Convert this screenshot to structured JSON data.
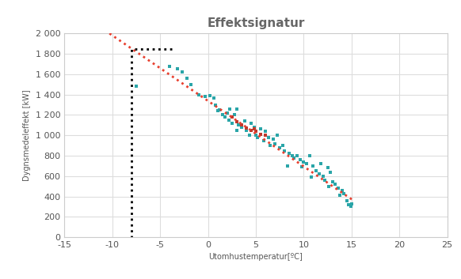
{
  "chart_data": {
    "type": "scatter",
    "title": "Effektsignatur",
    "x_label": "Utomhustemperatur[ºC]",
    "y_label": "Dygnsmedeleffekt [kW]",
    "xlim": [
      -15,
      25
    ],
    "xticks": [
      -15,
      -10,
      -5,
      0,
      5,
      10,
      15,
      20,
      25
    ],
    "ylim": [
      0,
      2000
    ],
    "yticks": [
      0,
      200,
      400,
      600,
      800,
      {
        "value": 1000,
        "label": "1 000"
      },
      {
        "value": 1200,
        "label": "1 200"
      },
      {
        "value": 1400,
        "label": "1 400"
      },
      {
        "value": 1600,
        "label": "1 600"
      },
      {
        "value": 1800,
        "label": "1 800"
      },
      {
        "value": 2000,
        "label": "2 000"
      }
    ],
    "grid": true,
    "series": [
      {
        "type": "scatter",
        "color": "#2aa5a8",
        "marker": "square",
        "x": [
          -7.5,
          -4,
          -3.2,
          -2.7,
          -2.2,
          -1.8,
          -1,
          -0.3,
          0.2,
          0.6,
          0.8,
          1.2,
          1.5,
          1.8,
          2,
          2.2,
          2.5,
          2.8,
          3,
          3.2,
          3.5,
          3.8,
          4,
          4.3,
          4.5,
          4.8,
          5.2,
          5.5,
          5.8,
          6,
          6.3,
          6.5,
          6.8,
          7,
          7.2,
          7.5,
          7.8,
          8,
          8.3,
          8.5,
          8.8,
          9,
          9.3,
          9.6,
          10,
          10.3,
          10.6,
          11,
          11.3,
          11.6,
          12,
          12.2,
          12.5,
          12.8,
          13,
          13.3,
          13.6,
          14,
          14.2,
          14.5,
          14.7,
          14.9,
          15,
          10.8,
          11.8,
          9.8,
          12.6,
          13.8,
          5,
          3,
          2.3,
          1
        ],
        "values": [
          1480,
          1680,
          1650,
          1620,
          1560,
          1500,
          1400,
          1380,
          1390,
          1370,
          1300,
          1250,
          1200,
          1180,
          1220,
          1150,
          1120,
          1200,
          1260,
          1100,
          1080,
          1140,
          1050,
          1000,
          1120,
          1080,
          980,
          1060,
          950,
          1040,
          980,
          900,
          960,
          920,
          1000,
          880,
          900,
          850,
          700,
          820,
          800,
          780,
          800,
          760,
          740,
          720,
          800,
          700,
          650,
          620,
          600,
          560,
          680,
          640,
          540,
          520,
          480,
          460,
          430,
          360,
          320,
          300,
          330,
          590,
          720,
          690,
          500,
          410,
          1000,
          1050,
          1260,
          1240
        ]
      },
      {
        "type": "scatter",
        "color": "#c0392b",
        "marker": "square",
        "x": [
          2.5,
          3,
          3.5,
          4,
          4.5,
          5,
          5.5,
          6,
          4.8
        ],
        "values": [
          1180,
          1130,
          1100,
          1070,
          1050,
          1040,
          1010,
          1000,
          1060
        ]
      },
      {
        "type": "line",
        "color": "#e8402f",
        "line_style": "dotted",
        "x": [
          -10.3,
          15.2
        ],
        "values": [
          2000,
          360
        ]
      },
      {
        "type": "line",
        "color": "#000000",
        "line_style": "dotted",
        "x": [
          -3.8,
          -8,
          -8
        ],
        "values": [
          1850,
          1850,
          0
        ]
      }
    ]
  }
}
